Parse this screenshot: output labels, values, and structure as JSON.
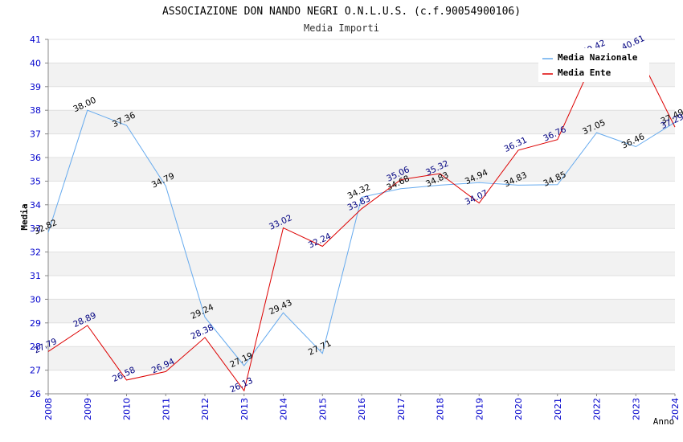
{
  "chart_data": {
    "type": "line",
    "title": "ASSOCIAZIONE DON NANDO NEGRI O.N.L.U.S. (c.f.90054900106)",
    "subtitle": "Media Importi",
    "xlabel": "Anno",
    "ylabel": "Media",
    "ylim": [
      26,
      41
    ],
    "yticks": [
      "26",
      "27",
      "28",
      "29",
      "30",
      "31",
      "32",
      "33",
      "34",
      "35",
      "36",
      "37",
      "38",
      "39",
      "40",
      "41"
    ],
    "categories": [
      "2008",
      "2009",
      "2010",
      "2011",
      "2012",
      "2013",
      "2014",
      "2015",
      "2016",
      "2017",
      "2018",
      "2019",
      "2020",
      "2021",
      "2022",
      "2023",
      "2024"
    ],
    "series": [
      {
        "name": "Media Nazionale",
        "color": "#66aaee",
        "label_color": "#000000",
        "values": [
          32.82,
          38.0,
          37.36,
          34.79,
          29.24,
          27.19,
          29.43,
          27.71,
          34.32,
          34.68,
          34.83,
          34.94,
          34.83,
          34.85,
          37.05,
          36.46,
          37.49
        ],
        "labels": [
          "32.82",
          "38.00",
          "37.36",
          "34.79",
          "29.24",
          "27.19",
          "29.43",
          "27.71",
          "34.32",
          "34.68",
          "34.83",
          "34.94",
          "34.83",
          "34.85",
          "37.05",
          "36.46",
          "37.49"
        ]
      },
      {
        "name": "Media Ente",
        "color": "#dd0000",
        "label_color": "#000080",
        "values": [
          27.79,
          28.89,
          26.58,
          26.94,
          28.38,
          26.13,
          33.02,
          32.24,
          33.83,
          35.06,
          35.32,
          34.07,
          36.31,
          36.76,
          40.42,
          40.61,
          37.29
        ],
        "labels": [
          "27.79",
          "28.89",
          "26.58",
          "26.94",
          "28.38",
          "26.13",
          "33.02",
          "32.24",
          "33.83",
          "35.06",
          "35.32",
          "34.07",
          "36.31",
          "36.76",
          "40.42",
          "40.61",
          "37.29"
        ]
      }
    ],
    "grid": true,
    "legend_position": "top-right"
  }
}
